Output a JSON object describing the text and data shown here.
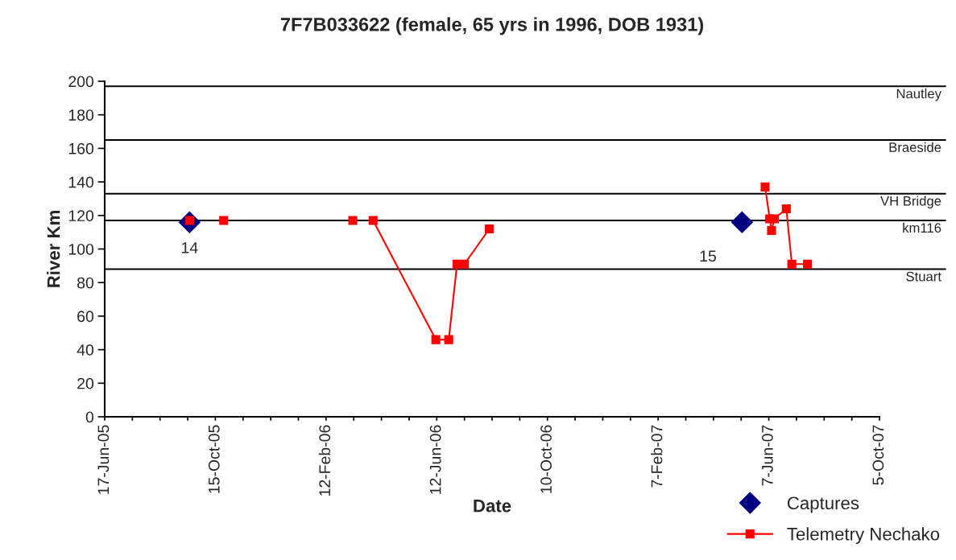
{
  "chart_data": {
    "type": "line",
    "title": "7F7B033622 (female, 65 yrs in 1996, DOB 1931)",
    "xlabel": "Date",
    "ylabel": "River Km",
    "series": [
      {
        "name": "Captures",
        "type": "scatter",
        "marker": "diamond",
        "color": "#000080",
        "x": [
          "2005-09-17",
          "2007-05-09"
        ],
        "values": [
          116,
          116
        ]
      },
      {
        "name": "Telemetry Nechako",
        "marker": "square",
        "color": "#ff0000",
        "x": [
          "2005-09-17",
          "2005-09-20",
          "2005-10-24",
          "2005-11-01",
          "2006-03-13",
          "2006-03-20",
          "2006-04-04",
          "2006-06-11",
          "2006-06-25",
          "2006-07-04",
          "2006-07-12",
          "2006-08-08",
          "2006-09-01",
          "2007-06-03",
          "2007-06-08",
          "2007-06-10",
          "2007-06-13",
          "2007-06-26",
          "2007-07-02",
          "2007-07-19"
        ],
        "values": [
          117,
          null,
          117,
          null,
          117,
          null,
          117,
          46,
          46,
          91,
          91,
          112,
          null,
          137,
          118,
          111,
          118,
          124,
          91,
          91
        ]
      }
    ],
    "xlim": [
      "2005-06-17",
      "2007-10-05"
    ],
    "xticks": [
      {
        "value": "2005-06-17",
        "label": "17-Jun-05"
      },
      {
        "value": "2005-07-17",
        "label": null
      },
      {
        "value": "2005-08-16",
        "label": null
      },
      {
        "value": "2005-09-15",
        "label": null
      },
      {
        "value": "2005-10-15",
        "label": "15-Oct-05"
      },
      {
        "value": "2005-11-14",
        "label": null
      },
      {
        "value": "2005-12-14",
        "label": null
      },
      {
        "value": "2006-01-13",
        "label": null
      },
      {
        "value": "2006-02-12",
        "label": "12-Feb-06"
      },
      {
        "value": "2006-03-14",
        "label": null
      },
      {
        "value": "2006-04-13",
        "label": null
      },
      {
        "value": "2006-05-13",
        "label": null
      },
      {
        "value": "2006-06-12",
        "label": "12-Jun-06"
      },
      {
        "value": "2006-07-12",
        "label": null
      },
      {
        "value": "2006-08-11",
        "label": null
      },
      {
        "value": "2006-09-10",
        "label": null
      },
      {
        "value": "2006-10-10",
        "label": "10-Oct-06"
      },
      {
        "value": "2006-11-09",
        "label": null
      },
      {
        "value": "2006-12-09",
        "label": null
      },
      {
        "value": "2007-01-08",
        "label": null
      },
      {
        "value": "2007-02-07",
        "label": "7-Feb-07"
      },
      {
        "value": "2007-03-09",
        "label": null
      },
      {
        "value": "2007-04-08",
        "label": null
      },
      {
        "value": "2007-05-08",
        "label": null
      },
      {
        "value": "2007-06-07",
        "label": "7-Jun-07"
      },
      {
        "value": "2007-07-07",
        "label": null
      },
      {
        "value": "2007-08-06",
        "label": null
      },
      {
        "value": "2007-09-05",
        "label": null
      },
      {
        "value": "2007-10-05",
        "label": "5-Oct-07"
      }
    ],
    "ylim": [
      0,
      200
    ],
    "yticks": [
      0,
      20,
      40,
      60,
      80,
      100,
      120,
      140,
      160,
      180,
      200
    ],
    "ref_lines": [
      {
        "axis": "y",
        "value": 197,
        "label": "Nautley",
        "color": "#000000"
      },
      {
        "axis": "y",
        "value": 165,
        "label": "Braeside",
        "color": "#000000"
      },
      {
        "axis": "y",
        "value": 133,
        "label": "VH Bridge",
        "color": "#000000"
      },
      {
        "axis": "y",
        "value": 117,
        "label": "km116",
        "color": "#000000"
      },
      {
        "axis": "y",
        "value": 88,
        "label": "Stuart",
        "color": "#000000"
      }
    ],
    "annotations": [
      {
        "text": "14",
        "x": "2005-09-17",
        "y": 100
      },
      {
        "text": "15",
        "x": "2007-04-02",
        "y": 95
      }
    ],
    "grid": false,
    "legend": "bottom right"
  }
}
